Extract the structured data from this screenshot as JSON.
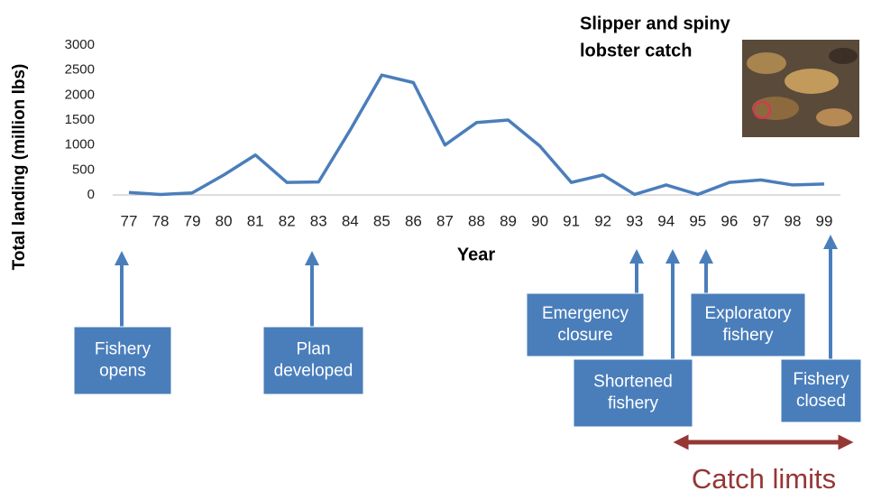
{
  "chart_data": {
    "type": "line",
    "title": [
      "Slipper and spiny",
      "lobster catch"
    ],
    "x_label": "Year",
    "y_label": "Total landing (million lbs)",
    "categories": [
      "77",
      "78",
      "79",
      "80",
      "81",
      "82",
      "83",
      "84",
      "85",
      "86",
      "87",
      "88",
      "89",
      "90",
      "91",
      "92",
      "93",
      "94",
      "95",
      "96",
      "97",
      "98",
      "99"
    ],
    "series": [
      {
        "color": "#4a7ebb",
        "values": [
          50,
          10,
          40,
          400,
          800,
          250,
          260,
          1300,
          2400,
          2250,
          1000,
          1450,
          1500,
          980,
          250,
          400,
          10,
          200,
          10,
          250,
          300,
          200,
          220
        ]
      }
    ],
    "ylim": [
      0,
      3000
    ],
    "yticks": [
      0,
      500,
      1000,
      1500,
      2000,
      2500,
      3000
    ],
    "grid": false,
    "annotations": [
      {
        "lines": [
          "Fishery",
          "opens"
        ]
      },
      {
        "lines": [
          "Plan",
          "developed"
        ]
      },
      {
        "lines": [
          "Emergency",
          "closure"
        ]
      },
      {
        "lines": [
          "Shortened",
          "fishery"
        ]
      },
      {
        "lines": [
          "Exploratory",
          "fishery"
        ]
      },
      {
        "lines": [
          "Fishery",
          "closed"
        ]
      }
    ],
    "range_label": "Catch limits"
  }
}
